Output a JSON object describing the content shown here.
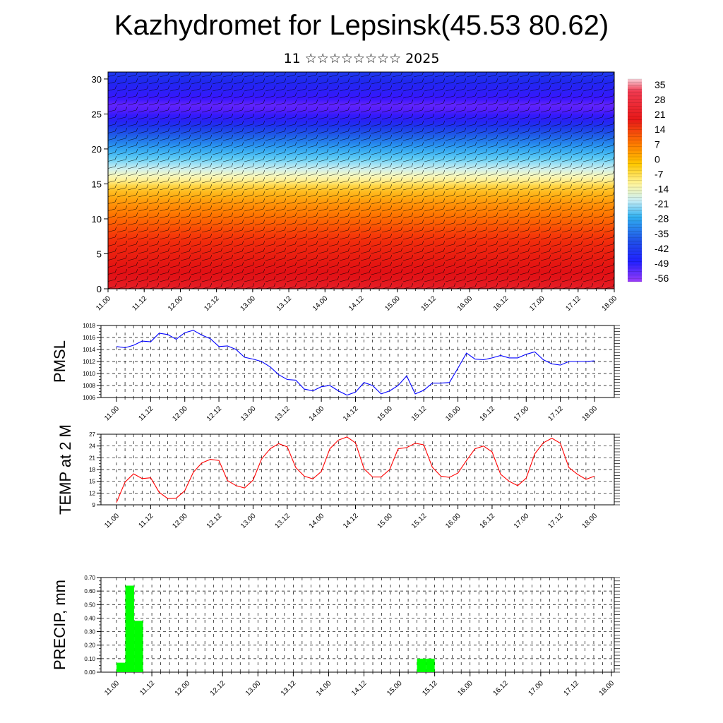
{
  "title": "Kazhydromet for Lepsinsk(45.53 80.62)",
  "subtitle": "11 ☆☆☆☆☆☆☆☆ 2025",
  "colors": {
    "pmsl_line": "#0000ff",
    "temp_line": "#ff0000",
    "precip_bar": "#00ff00",
    "grid": "#000000"
  },
  "chart_data": [
    {
      "type": "heatmap",
      "description_label": "cross-section",
      "y_ticks": [
        "0",
        "5",
        "10",
        "15",
        "20",
        "25",
        "30"
      ],
      "ylim": [
        0,
        31
      ],
      "x_ticks": [
        "11.00",
        "11.12",
        "12.00",
        "12.12",
        "13.00",
        "13.12",
        "14.00",
        "14.12",
        "15.00",
        "15.12",
        "16.00",
        "16.12",
        "17.00",
        "17.12",
        "18.00"
      ],
      "colorbar_labels": [
        "35",
        "28",
        "21",
        "14",
        "7",
        "0",
        "-7",
        "-14",
        "-21",
        "-28",
        "-35",
        "-42",
        "-49",
        "-56"
      ],
      "colorbar_range": [
        -60,
        40
      ],
      "profile": [
        {
          "level": 0,
          "value": 28
        },
        {
          "level": 3,
          "value": 25
        },
        {
          "level": 6,
          "value": 21
        },
        {
          "level": 9,
          "value": 14
        },
        {
          "level": 12,
          "value": 7
        },
        {
          "level": 14,
          "value": 0
        },
        {
          "level": 15.5,
          "value": -10
        },
        {
          "level": 18,
          "value": -20
        },
        {
          "level": 20,
          "value": -30
        },
        {
          "level": 22,
          "value": -40
        },
        {
          "level": 24,
          "value": -50
        },
        {
          "level": 26,
          "value": -58
        },
        {
          "level": 28,
          "value": -52
        },
        {
          "level": 31,
          "value": -45
        }
      ]
    },
    {
      "type": "line",
      "ylabel": "PMSL",
      "ylim": [
        1006,
        1018
      ],
      "y_ticks": [
        "1006",
        "1008",
        "1010",
        "1012",
        "1014",
        "1016",
        "1018"
      ],
      "x_ticks": [
        "11.00",
        "11.12",
        "12.00",
        "12.12",
        "13.00",
        "13.12",
        "14.00",
        "14.12",
        "15.00",
        "15.12",
        "16.00",
        "16.12",
        "17.00",
        "17.12",
        "18.00"
      ],
      "x_step_hours": 3,
      "values": [
        1014.5,
        1014.3,
        1014.7,
        1015.4,
        1015.3,
        1016.7,
        1016.5,
        1015.7,
        1016.8,
        1017.2,
        1016.4,
        1015.8,
        1014.5,
        1014.6,
        1014.0,
        1012.7,
        1012.4,
        1012.0,
        1011.1,
        1009.8,
        1009.0,
        1008.9,
        1007.4,
        1007.1,
        1007.8,
        1008.0,
        1007.1,
        1006.4,
        1006.9,
        1008.5,
        1008.0,
        1006.6,
        1007.1,
        1008.0,
        1009.6,
        1006.6,
        1007.2,
        1008.4,
        1008.4,
        1008.5,
        1010.9,
        1013.4,
        1012.4,
        1012.3,
        1012.6,
        1013.0,
        1012.6,
        1012.6,
        1013.2,
        1013.6,
        1012.3,
        1011.6,
        1011.4,
        1012.0,
        1012.0,
        1012.0,
        1012.1
      ]
    },
    {
      "type": "line",
      "ylabel": "TEMP at 2 M",
      "ylim": [
        9,
        27
      ],
      "y_ticks": [
        "9",
        "12",
        "15",
        "18",
        "21",
        "24",
        "27"
      ],
      "x_ticks": [
        "11.00",
        "11.12",
        "12.00",
        "12.12",
        "13.00",
        "13.12",
        "14.00",
        "14.12",
        "15.00",
        "15.12",
        "16.00",
        "16.12",
        "17.00",
        "17.12",
        "18.00"
      ],
      "x_step_hours": 3,
      "values": [
        9.6,
        14.8,
        16.9,
        15.7,
        15.9,
        12.2,
        10.6,
        10.7,
        12.6,
        17.3,
        19.7,
        20.6,
        20.3,
        15.2,
        13.9,
        13.3,
        15.3,
        20.7,
        23.3,
        24.6,
        23.8,
        18.5,
        16.3,
        15.6,
        17.5,
        23.3,
        25.5,
        26.3,
        24.8,
        18.2,
        16.1,
        16.1,
        18.0,
        23.3,
        23.6,
        24.7,
        24.3,
        18.6,
        16.3,
        16.0,
        17.1,
        20.3,
        23.3,
        24.0,
        22.5,
        16.8,
        15.0,
        13.9,
        15.8,
        22.0,
        24.8,
        26.0,
        24.7,
        18.5,
        16.8,
        15.5,
        16.3
      ]
    },
    {
      "type": "bar",
      "ylabel": "PRECIP, mm",
      "ylim": [
        0,
        0.7
      ],
      "y_ticks": [
        "0.00",
        "0.10",
        "0.20",
        "0.30",
        "0.40",
        "0.50",
        "0.60",
        "0.70"
      ],
      "x_ticks": [
        "11.00",
        "11.12",
        "12.00",
        "12.12",
        "13.00",
        "13.12",
        "14.00",
        "14.12",
        "15.00",
        "15.12",
        "16.00",
        "16.12",
        "17.00",
        "17.12",
        "18.00"
      ],
      "bars": [
        {
          "x_hours": 3,
          "value": 0.07
        },
        {
          "x_hours": 6,
          "value": 0.64
        },
        {
          "x_hours": 9,
          "value": 0.38
        },
        {
          "x_hours": 105,
          "value": 0.1
        },
        {
          "x_hours": 108,
          "value": 0.1
        }
      ]
    }
  ]
}
